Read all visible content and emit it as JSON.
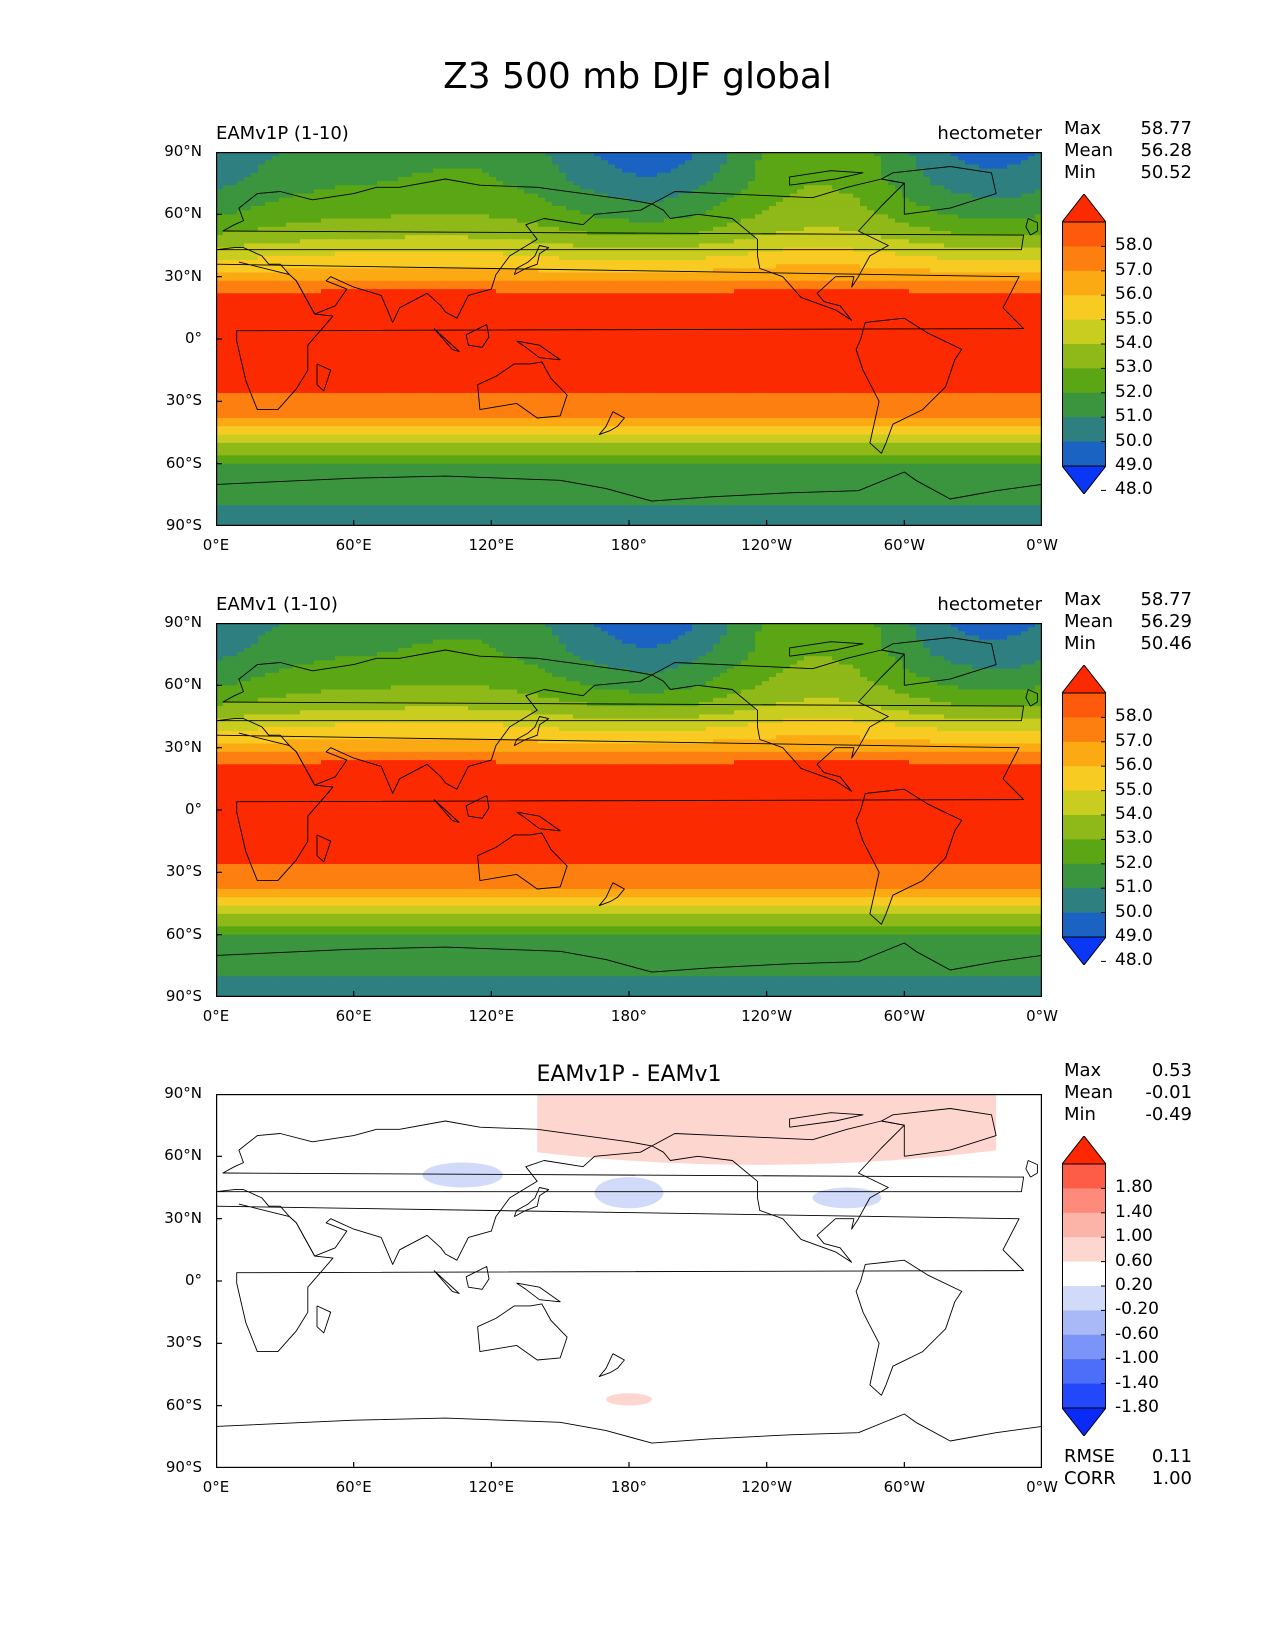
{
  "title": "Z3 500 mb DJF global",
  "xticks": [
    "0°E",
    "60°E",
    "120°E",
    "180°",
    "120°W",
    "60°W",
    "0°W"
  ],
  "yticks": [
    "90°N",
    "60°N",
    "30°N",
    "0°",
    "30°S",
    "60°S",
    "90°S"
  ],
  "panels": [
    {
      "title_left": "EAMv1P (1-10)",
      "title_right": "hectometer",
      "stats": {
        "max_label": "Max",
        "max": "58.77",
        "mean_label": "Mean",
        "mean": "56.28",
        "min_label": "Min",
        "min": "50.52"
      },
      "colorbar": {
        "labels": [
          "58.0",
          "57.0",
          "56.0",
          "55.0",
          "54.0",
          "53.0",
          "52.0",
          "51.0",
          "50.0",
          "49.0",
          "48.0"
        ],
        "colors": [
          "#fc2a00",
          "#fd5a0c",
          "#fd7f10",
          "#fcaa14",
          "#f8cb23",
          "#c9cd20",
          "#8fb819",
          "#5aa615",
          "#3b953f",
          "#2e8080",
          "#1b63c2",
          "#0a36f5"
        ]
      }
    },
    {
      "title_left": "EAMv1 (1-10)",
      "title_right": "hectometer",
      "stats": {
        "max_label": "Max",
        "max": "58.77",
        "mean_label": "Mean",
        "mean": "56.29",
        "min_label": "Min",
        "min": "50.46"
      },
      "colorbar": {
        "labels": [
          "58.0",
          "57.0",
          "56.0",
          "55.0",
          "54.0",
          "53.0",
          "52.0",
          "51.0",
          "50.0",
          "49.0",
          "48.0"
        ],
        "colors": [
          "#fc2a00",
          "#fd5a0c",
          "#fd7f10",
          "#fcaa14",
          "#f8cb23",
          "#c9cd20",
          "#8fb819",
          "#5aa615",
          "#3b953f",
          "#2e8080",
          "#1b63c2",
          "#0a36f5"
        ]
      }
    },
    {
      "title_center": "EAMv1P - EAMv1",
      "stats": {
        "max_label": "Max",
        "max": "0.53",
        "mean_label": "Mean",
        "mean": "-0.01",
        "min_label": "Min",
        "min": "-0.49"
      },
      "colorbar": {
        "labels": [
          "1.80",
          "1.40",
          "1.00",
          "0.60",
          "0.20",
          "-0.20",
          "-0.60",
          "-1.00",
          "-1.40",
          "-1.80"
        ],
        "colors": [
          "#fe2800",
          "#fd5c46",
          "#fd8a7a",
          "#fdb4a8",
          "#fdd6d0",
          "#ffffff",
          "#d2daf9",
          "#a9b8f6",
          "#7a94f7",
          "#4d6ef9",
          "#2348fb",
          "#0a2af8"
        ]
      },
      "bottom": {
        "rmse_label": "RMSE",
        "rmse": "0.11",
        "corr_label": "CORR",
        "corr": "1.00"
      }
    }
  ],
  "chart_data": [
    {
      "type": "heatmap",
      "title": "EAMv1P (1-10)",
      "units": "hectometer",
      "xlim": [
        0,
        360
      ],
      "ylim": [
        -90,
        90
      ],
      "levels": [
        48,
        49,
        50,
        51,
        52,
        53,
        54,
        55,
        56,
        57,
        58
      ],
      "zonal_profile": {
        "lat": [
          90,
          75,
          60,
          50,
          40,
          30,
          22,
          0,
          -22,
          -35,
          -40,
          -45,
          -50,
          -55,
          -60,
          -70,
          -90
        ],
        "z3": [
          51.0,
          51.5,
          52.5,
          53.5,
          55.0,
          56.5,
          58.2,
          58.6,
          58.2,
          57.5,
          56.5,
          55.5,
          54.0,
          53.0,
          52.0,
          51.2,
          50.8
        ]
      },
      "stats": {
        "max": 58.77,
        "mean": 56.28,
        "min": 50.52
      }
    },
    {
      "type": "heatmap",
      "title": "EAMv1 (1-10)",
      "units": "hectometer",
      "xlim": [
        0,
        360
      ],
      "ylim": [
        -90,
        90
      ],
      "levels": [
        48,
        49,
        50,
        51,
        52,
        53,
        54,
        55,
        56,
        57,
        58
      ],
      "zonal_profile": {
        "lat": [
          90,
          75,
          60,
          50,
          40,
          30,
          22,
          0,
          -22,
          -35,
          -40,
          -45,
          -50,
          -55,
          -60,
          -70,
          -90
        ],
        "z3": [
          51.0,
          51.5,
          52.5,
          53.5,
          55.0,
          56.5,
          58.2,
          58.6,
          58.2,
          57.5,
          56.5,
          55.5,
          54.0,
          53.0,
          52.0,
          51.2,
          50.8
        ]
      },
      "stats": {
        "max": 58.77,
        "mean": 56.29,
        "min": 50.46
      }
    },
    {
      "type": "heatmap",
      "title": "EAMv1P - EAMv1",
      "xlim": [
        0,
        360
      ],
      "ylim": [
        -90,
        90
      ],
      "levels": [
        -1.8,
        -1.4,
        -1.0,
        -0.6,
        -0.2,
        0.2,
        0.6,
        1.0,
        1.4,
        1.8
      ],
      "anomalies": [
        {
          "sign": "positive",
          "lon": [
            140,
            340
          ],
          "lat": [
            60,
            90
          ]
        },
        {
          "sign": "negative",
          "lon": [
            165,
            195
          ],
          "lat": [
            35,
            50
          ]
        },
        {
          "sign": "negative",
          "lon": [
            260,
            290
          ],
          "lat": [
            35,
            45
          ]
        },
        {
          "sign": "negative",
          "lon": [
            90,
            125
          ],
          "lat": [
            45,
            57
          ]
        },
        {
          "sign": "positive",
          "lon": [
            170,
            190
          ],
          "lat": [
            -60,
            -54
          ]
        }
      ],
      "stats": {
        "max": 0.53,
        "mean": -0.01,
        "min": -0.49,
        "rmse": 0.11,
        "corr": 1.0
      }
    }
  ]
}
